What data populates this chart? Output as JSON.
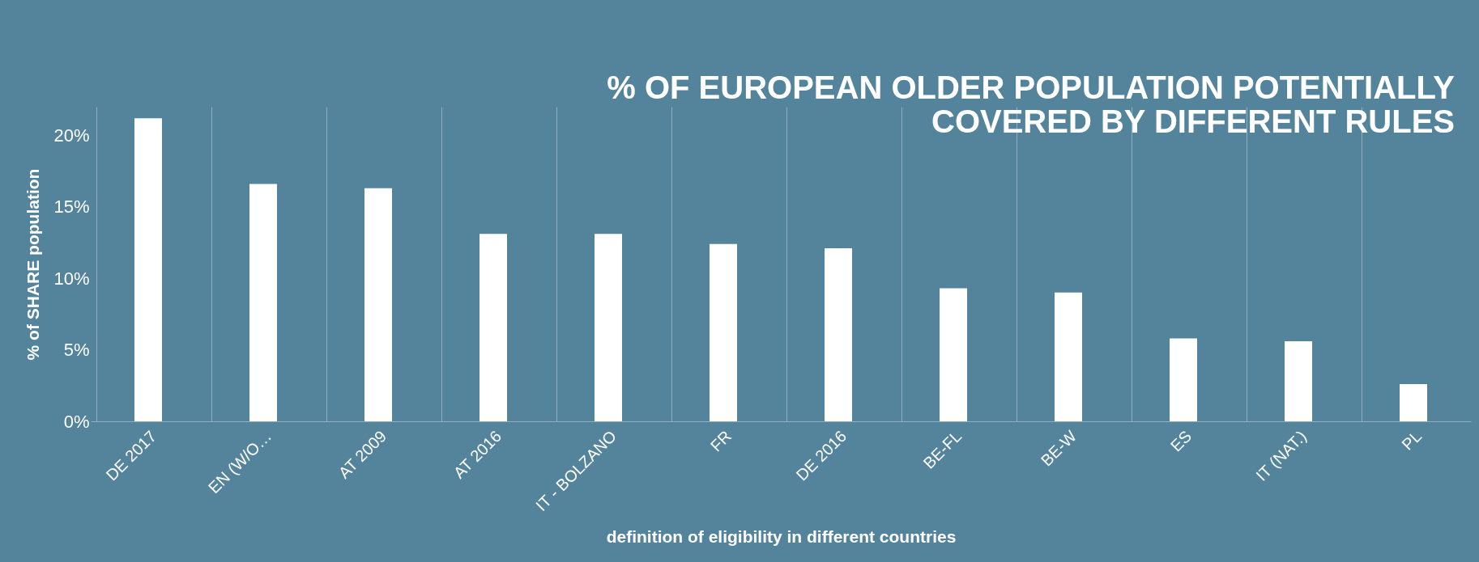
{
  "chart_data": {
    "type": "bar",
    "title": [
      "% OF EUROPEAN OLDER POPULATION POTENTIALLY",
      "COVERED BY DIFFERENT RULES"
    ],
    "xlabel": "definition of eligibility in different countries",
    "ylabel": "% of SHARE population",
    "categories": [
      "DE 2017",
      "EN (W/O…",
      "AT 2009",
      "AT 2016",
      "IT - BOLZANO",
      "FR",
      "DE 2016",
      "BE-FL",
      "BE-W",
      "ES",
      "IT (NAT.)",
      "PL"
    ],
    "values": [
      21.2,
      16.6,
      16.3,
      13.1,
      13.1,
      12.4,
      12.1,
      9.3,
      9.0,
      5.8,
      5.6,
      2.6
    ],
    "color": "#ffffff",
    "ylim": [
      0,
      22
    ],
    "yticks": [
      {
        "value": 0,
        "label": "0%"
      },
      {
        "value": 5,
        "label": "5%"
      },
      {
        "value": 10,
        "label": "10%"
      },
      {
        "value": 15,
        "label": "15%"
      },
      {
        "value": 20,
        "label": "20%"
      }
    ],
    "grid": "x"
  }
}
